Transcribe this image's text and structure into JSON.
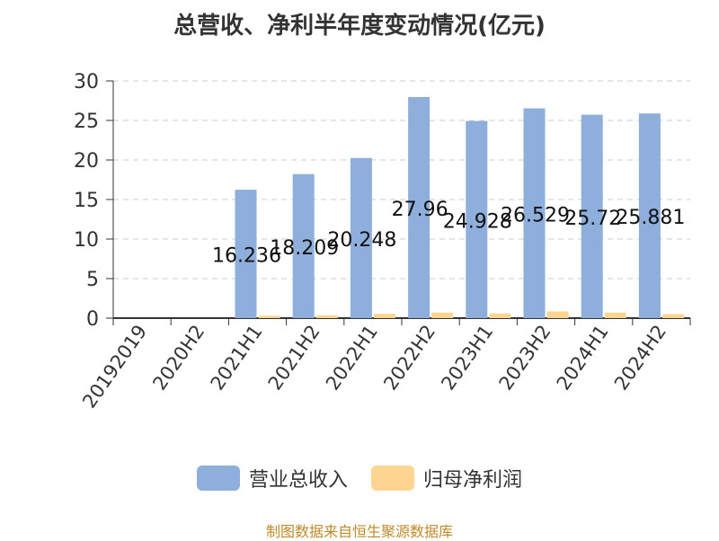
{
  "chart_data": {
    "type": "bar",
    "title": "总营收、净利半年度变动情况(亿元)",
    "categories": [
      "20192019",
      "2020H2",
      "2021H1",
      "2021H2",
      "2022H1",
      "2022H2",
      "2023H1",
      "2023H2",
      "2024H1",
      "2024H2"
    ],
    "series": [
      {
        "name": "营业总收入",
        "color": "#8eaedb",
        "values": [
          0,
          0,
          16.236,
          18.209,
          20.248,
          27.96,
          24.928,
          26.529,
          25.72,
          25.881
        ]
      },
      {
        "name": "归母净利润",
        "color": "#fdd590",
        "values": [
          0,
          0,
          0.3,
          0.35,
          0.55,
          0.7,
          0.6,
          0.85,
          0.7,
          0.5
        ]
      }
    ],
    "data_labels": [
      "",
      "",
      "16.236",
      "18.209",
      "20.248",
      "27.96",
      "24.928",
      "26.529",
      "25.72",
      "25.881"
    ],
    "ylim": [
      0,
      30
    ],
    "yticks": [
      0,
      5,
      10,
      15,
      20,
      25,
      30
    ],
    "grid": true,
    "legend_position": "bottom"
  },
  "footer": {
    "source": "制图数据来自恒生聚源数据库"
  }
}
